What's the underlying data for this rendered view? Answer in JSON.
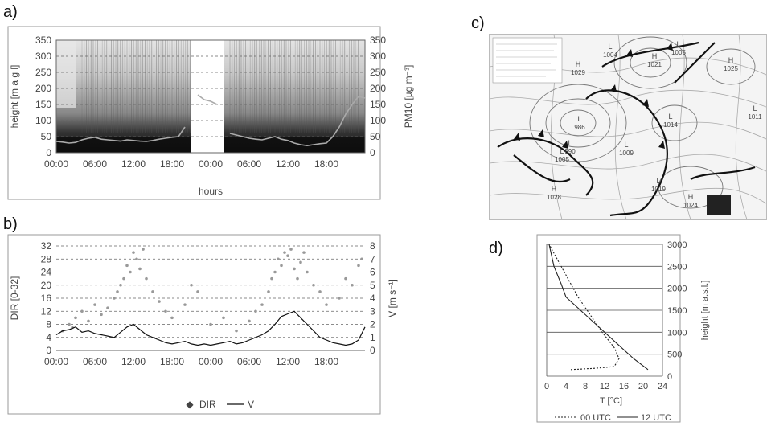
{
  "labels": {
    "a": "a)",
    "b": "b)",
    "c": "c)",
    "d": "d)"
  },
  "chart_data": [
    {
      "panel": "a",
      "type": "heatmap",
      "xlabel": "hours",
      "ylabel_left": "height [m a g l]",
      "ylabel_right": "PM10 [µg m⁻³]",
      "ylim": [
        0,
        350
      ],
      "y2lim": [
        0,
        350
      ],
      "yticks": [
        0,
        50,
        100,
        150,
        200,
        250,
        300,
        350
      ],
      "xticks": [
        "00:00",
        "06:00",
        "12:00",
        "18:00",
        "00:00",
        "06:00",
        "12:00",
        "18:00"
      ],
      "x_hours_range": [
        0,
        48
      ],
      "gap_hours": [
        21,
        26
      ],
      "pm10_series": {
        "x_hours": [
          0,
          1,
          2,
          3,
          4,
          5,
          6,
          7,
          8,
          9,
          10,
          11,
          12,
          13,
          14,
          15,
          16,
          17,
          18,
          19,
          20,
          21,
          22,
          23,
          24,
          25,
          26,
          27,
          28,
          29,
          30,
          31,
          32,
          33,
          34,
          35,
          36,
          37,
          38,
          39,
          40,
          41,
          42,
          43,
          44,
          45,
          46,
          47,
          48
        ],
        "values": [
          35,
          33,
          30,
          32,
          40,
          45,
          48,
          42,
          40,
          38,
          36,
          40,
          38,
          36,
          35,
          38,
          42,
          45,
          48,
          50,
          80,
          null,
          180,
          165,
          160,
          150,
          null,
          60,
          55,
          50,
          45,
          42,
          40,
          45,
          50,
          42,
          38,
          30,
          25,
          22,
          25,
          28,
          30,
          50,
          80,
          120,
          150,
          175,
          170
        ]
      },
      "grid": true
    },
    {
      "panel": "b",
      "type": "scatter",
      "ylabel_left": "DIR [0-32]",
      "ylabel_right": "V [m s⁻¹]",
      "ylim": [
        0,
        32
      ],
      "y2lim": [
        0,
        8
      ],
      "yticks": [
        0,
        4,
        8,
        12,
        16,
        20,
        24,
        28,
        32
      ],
      "y2ticks": [
        0,
        1,
        2,
        3,
        4,
        5,
        6,
        7,
        8
      ],
      "xticks": [
        "00:00",
        "06:00",
        "12:00",
        "18:00",
        "00:00",
        "06:00",
        "12:00",
        "18:00"
      ],
      "x_hours_range": [
        0,
        48
      ],
      "series": [
        {
          "name": "DIR",
          "style": "points"
        },
        {
          "name": "V",
          "style": "line",
          "x_hours": [
            0,
            1,
            2,
            3,
            4,
            5,
            6,
            7,
            8,
            9,
            10,
            11,
            12,
            13,
            14,
            15,
            16,
            17,
            18,
            19,
            20,
            21,
            22,
            23,
            24,
            25,
            26,
            27,
            28,
            29,
            30,
            31,
            32,
            33,
            34,
            35,
            36,
            37,
            38,
            39,
            40,
            41,
            42,
            43,
            44,
            45,
            46,
            47,
            48
          ],
          "values": [
            1.2,
            1.5,
            1.6,
            1.8,
            1.4,
            1.5,
            1.3,
            1.2,
            1.1,
            1.0,
            1.4,
            1.8,
            2.0,
            1.6,
            1.2,
            1.0,
            0.8,
            0.6,
            0.5,
            0.6,
            0.7,
            0.5,
            0.4,
            0.5,
            0.4,
            0.5,
            0.6,
            0.7,
            0.5,
            0.6,
            0.8,
            1.0,
            1.2,
            1.5,
            2.0,
            2.6,
            2.8,
            3.0,
            2.5,
            2.0,
            1.5,
            1.0,
            0.8,
            0.6,
            0.5,
            0.4,
            0.5,
            0.8,
            1.8
          ]
        }
      ],
      "dir_points": {
        "x_hours": [
          1,
          2,
          2.5,
          3,
          4,
          5,
          6,
          7,
          8,
          9,
          9.5,
          10,
          10.5,
          11,
          11.5,
          12,
          12.5,
          13,
          13.5,
          14,
          15,
          16,
          17,
          18,
          20,
          21,
          22,
          24,
          26,
          28,
          30,
          31,
          32,
          33,
          33.5,
          34,
          34.5,
          35,
          35.5,
          36,
          36.5,
          37,
          37.5,
          38,
          38.5,
          39,
          40,
          41,
          42,
          44,
          45,
          46,
          47,
          47.5
        ],
        "values": [
          6,
          8,
          7,
          10,
          12,
          9,
          14,
          11,
          13,
          16,
          18,
          20,
          22,
          26,
          24,
          30,
          28,
          25,
          31,
          22,
          18,
          15,
          12,
          10,
          14,
          20,
          18,
          8,
          10,
          6,
          9,
          12,
          14,
          18,
          22,
          24,
          28,
          26,
          30,
          29,
          31,
          25,
          22,
          27,
          30,
          24,
          20,
          18,
          14,
          16,
          22,
          20,
          26,
          28
        ]
      },
      "legend": [
        "DIR",
        "V"
      ],
      "legend_position": "bottom",
      "grid": true
    },
    {
      "panel": "d",
      "type": "line",
      "xlabel": "T [°C]",
      "ylabel": "height [m a.s.l.]",
      "xlim": [
        0,
        24
      ],
      "ylim": [
        0,
        3000
      ],
      "xticks": [
        0,
        4,
        8,
        12,
        16,
        20,
        24
      ],
      "yticks": [
        0,
        500,
        1000,
        1500,
        2000,
        2500,
        3000
      ],
      "series": [
        {
          "name": "00 UTC",
          "style": "dotted",
          "x": [
            5,
            10,
            14,
            15,
            14,
            11.5,
            9,
            6.5,
            4.5,
            2.5,
            0.5
          ],
          "y": [
            150,
            180,
            220,
            400,
            650,
            1000,
            1400,
            1800,
            2200,
            2600,
            3000
          ]
        },
        {
          "name": "12 UTC",
          "style": "solid",
          "x": [
            21,
            18,
            14,
            10,
            7,
            4,
            3,
            1.5,
            0.5
          ],
          "y": [
            150,
            400,
            800,
            1200,
            1500,
            1800,
            2100,
            2500,
            3000
          ]
        }
      ],
      "legend": [
        "00 UTC",
        "12 UTC"
      ],
      "legend_position": "bottom",
      "grid": true
    }
  ],
  "map": {
    "pressure_labels": [
      {
        "kind": "H",
        "value": "1029"
      },
      {
        "kind": "L",
        "value": "1004"
      },
      {
        "kind": "H",
        "value": "1021"
      },
      {
        "kind": "L",
        "value": "1005"
      },
      {
        "kind": "H",
        "value": "1025"
      },
      {
        "kind": "L",
        "value": "1011"
      },
      {
        "kind": "L",
        "value": "986"
      },
      {
        "kind": "L",
        "value": "990"
      },
      {
        "kind": "L",
        "value": "1014"
      },
      {
        "kind": "L",
        "value": "1005"
      },
      {
        "kind": "L",
        "value": "1009"
      },
      {
        "kind": "L",
        "value": "1019"
      },
      {
        "kind": "H",
        "value": "1028"
      },
      {
        "kind": "H",
        "value": "1024"
      }
    ]
  }
}
